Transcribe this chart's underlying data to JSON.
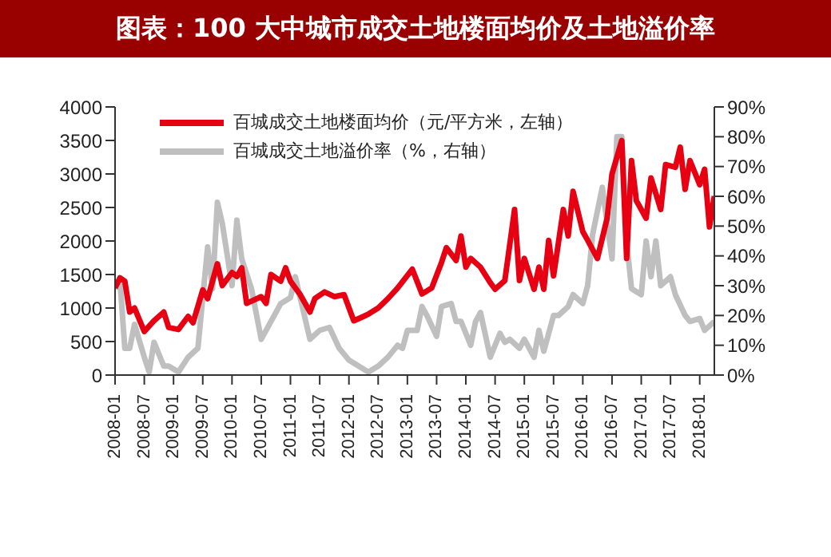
{
  "chart_data": {
    "type": "line",
    "title": "图表：100 大中城市成交土地楼面均价及土地溢价率",
    "xlim": [
      "2008-01",
      "2018-04"
    ],
    "xticks": [
      "2008-01",
      "2008-07",
      "2009-01",
      "2009-07",
      "2010-01",
      "2010-07",
      "2011-01",
      "2011-07",
      "2012-01",
      "2012-07",
      "2013-01",
      "2013-07",
      "2014-01",
      "2014-07",
      "2015-01",
      "2015-07",
      "2016-01",
      "2016-07",
      "2017-01",
      "2017-07",
      "2018-01"
    ],
    "ylim": [
      0,
      4000
    ],
    "yticks": [
      0,
      500,
      1000,
      1500,
      2000,
      2500,
      3000,
      3500,
      4000
    ],
    "y2lim": [
      0,
      90
    ],
    "y2ticks": [
      {
        "value": 0,
        "label": "0%"
      },
      {
        "value": 10,
        "label": "10%"
      },
      {
        "value": 20,
        "label": "20%"
      },
      {
        "value": 30,
        "label": "30%"
      },
      {
        "value": 40,
        "label": "40%"
      },
      {
        "value": 50,
        "label": "50%"
      },
      {
        "value": 60,
        "label": "60%"
      },
      {
        "value": 70,
        "label": "70%"
      },
      {
        "value": 80,
        "label": "80%"
      },
      {
        "value": 90,
        "label": "90%"
      }
    ],
    "grid": false,
    "legend": "top left",
    "marker": "none",
    "line_style": "solid",
    "series": [
      {
        "name": "百城成交土地楼面均价（元/平方米，左轴）",
        "color": "#e60012",
        "x": [
          "2008-01",
          "2008-02",
          "2008-03",
          "2008-04",
          "2008-05",
          "2008-07",
          "2008-09",
          "2008-11",
          "2008-12",
          "2009-02",
          "2009-04",
          "2009-05",
          "2009-07",
          "2009-08",
          "2009-10",
          "2009-11",
          "2010-01",
          "2010-02",
          "2010-03",
          "2010-04",
          "2010-07",
          "2010-08",
          "2010-09",
          "2010-11",
          "2010-12",
          "2011-01",
          "2011-03",
          "2011-05",
          "2011-06",
          "2011-08",
          "2011-10",
          "2011-12",
          "2012-02",
          "2012-04",
          "2012-05",
          "2012-07",
          "2012-09",
          "2012-11",
          "2013-02",
          "2013-04",
          "2013-06",
          "2013-08",
          "2013-09",
          "2013-11",
          "2013-12",
          "2014-01",
          "2014-02",
          "2014-04",
          "2014-06",
          "2014-07",
          "2014-09",
          "2014-11",
          "2014-12",
          "2015-01",
          "2015-03",
          "2015-04",
          "2015-05",
          "2015-06",
          "2015-07",
          "2015-09",
          "2015-10",
          "2015-11",
          "2016-01",
          "2016-02",
          "2016-04",
          "2016-06",
          "2016-07",
          "2016-09",
          "2016-10",
          "2016-11",
          "2016-12",
          "2017-02",
          "2017-03",
          "2017-05",
          "2017-06",
          "2017-08",
          "2017-09",
          "2017-10",
          "2017-11",
          "2018-01",
          "2018-02",
          "2018-03",
          "2018-04"
        ],
        "values": [
          1300,
          1450,
          1400,
          940,
          1000,
          650,
          810,
          940,
          710,
          680,
          875,
          780,
          1270,
          1140,
          1660,
          1335,
          1530,
          1470,
          1600,
          1070,
          1170,
          1070,
          1500,
          1400,
          1600,
          1400,
          1200,
          940,
          1140,
          1240,
          1170,
          1200,
          810,
          875,
          910,
          1000,
          1140,
          1300,
          1580,
          1210,
          1300,
          1680,
          1900,
          1710,
          2075,
          1610,
          1740,
          1610,
          1380,
          1280,
          1410,
          2470,
          1410,
          1740,
          1280,
          1610,
          1280,
          2010,
          1480,
          2470,
          2075,
          2740,
          2140,
          2010,
          1740,
          2340,
          3000,
          3500,
          1740,
          3200,
          2600,
          2340,
          2940,
          2470,
          3140,
          3100,
          3400,
          2770,
          3200,
          2840,
          3070,
          2210,
          2670
        ]
      },
      {
        "name": "百城成交土地溢价率（%，右轴）",
        "color": "#bfbfbf",
        "axis": "y2",
        "x": [
          "2008-01",
          "2008-02",
          "2008-03",
          "2008-04",
          "2008-05",
          "2008-07",
          "2008-08",
          "2008-09",
          "2008-11",
          "2008-12",
          "2009-02",
          "2009-04",
          "2009-06",
          "2009-08",
          "2009-09",
          "2009-10",
          "2009-11",
          "2010-01",
          "2010-02",
          "2010-03",
          "2010-05",
          "2010-07",
          "2010-09",
          "2010-11",
          "2011-01",
          "2011-02",
          "2011-03",
          "2011-05",
          "2011-07",
          "2011-09",
          "2011-11",
          "2012-01",
          "2012-03",
          "2012-05",
          "2012-07",
          "2012-09",
          "2012-11",
          "2012-12",
          "2013-01",
          "2013-03",
          "2013-04",
          "2013-05",
          "2013-07",
          "2013-08",
          "2013-10",
          "2013-11",
          "2013-12",
          "2014-02",
          "2014-03",
          "2014-04",
          "2014-06",
          "2014-08",
          "2014-09",
          "2014-10",
          "2014-12",
          "2015-01",
          "2015-03",
          "2015-04",
          "2015-05",
          "2015-07",
          "2015-08",
          "2015-10",
          "2015-11",
          "2016-01",
          "2016-02",
          "2016-03",
          "2016-05",
          "2016-06",
          "2016-07",
          "2016-08",
          "2016-09",
          "2016-10",
          "2016-11",
          "2017-01",
          "2017-02",
          "2017-03",
          "2017-04",
          "2017-05",
          "2017-07",
          "2017-08",
          "2017-10",
          "2017-11",
          "2018-01",
          "2018-02",
          "2018-04"
        ],
        "values": [
          29,
          32,
          9,
          9,
          17,
          6,
          1,
          11,
          3,
          3,
          1,
          6,
          9,
          43,
          29,
          58,
          51,
          30,
          52,
          39,
          29,
          12,
          18,
          24,
          26,
          33,
          26,
          12,
          15,
          16,
          9,
          5,
          3,
          1,
          3,
          6,
          10,
          9,
          15,
          15,
          23,
          20,
          13,
          23,
          24,
          18,
          18,
          10,
          18,
          21,
          6,
          14,
          11,
          12,
          9,
          12,
          6,
          15,
          8,
          20,
          20,
          23,
          27,
          24,
          30,
          47,
          63,
          51,
          39,
          80,
          80,
          45,
          29,
          27,
          45,
          33,
          45,
          30,
          33,
          27,
          20,
          18,
          19,
          15,
          18
        ]
      }
    ]
  }
}
